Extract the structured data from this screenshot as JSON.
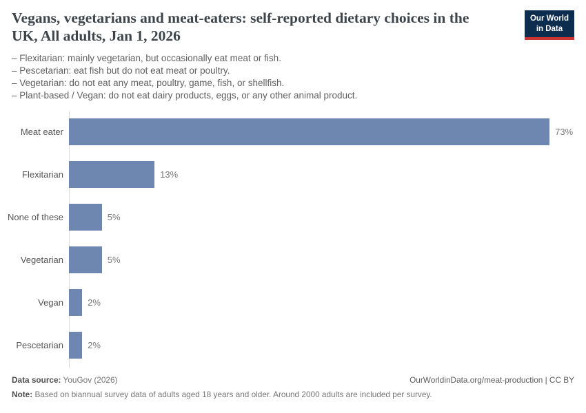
{
  "header": {
    "title": "Vegans, vegetarians and meat-eaters: self-reported dietary choices in the UK, All adults, Jan 1, 2026",
    "subtitle_lines": [
      "– Flexitarian: mainly vegetarian, but occasionally eat meat or fish.",
      "– Pescetarian: eat fish but do not eat meat or poultry.",
      "– Vegetarian: do not eat any meat, poultry, game, fish, or shellfish.",
      "– Plant-based / Vegan: do not eat dairy products, eggs, or any other animal product."
    ],
    "logo": {
      "line1": "Our World",
      "line2": "in Data",
      "bg_color": "#0d2d4f",
      "accent_color": "#cc3333"
    }
  },
  "chart_data": {
    "type": "bar",
    "orientation": "horizontal",
    "title": "Vegans, vegetarians and meat-eaters: self-reported dietary choices in the UK, All adults, Jan 1, 2026",
    "categories": [
      "Meat eater",
      "Flexitarian",
      "None of these",
      "Vegetarian",
      "Vegan",
      "Pescetarian"
    ],
    "values": [
      73,
      13,
      5,
      5,
      2,
      2
    ],
    "value_labels": [
      "73%",
      "13%",
      "5%",
      "5%",
      "2%",
      "2%"
    ],
    "unit": "%",
    "xlim": [
      0,
      76.8
    ],
    "bar_color": "#6d87b0",
    "axis_line_color": "#dcdcdc",
    "grid": false,
    "legend": "none"
  },
  "footer": {
    "source_label": "Data source:",
    "source_value": "YouGov (2026)",
    "attribution": "OurWorldinData.org/meat-production | CC BY",
    "note_label": "Note:",
    "note_value": "Based on biannual survey data of adults aged 18 years and older. Around 2000 adults are included per survey."
  }
}
